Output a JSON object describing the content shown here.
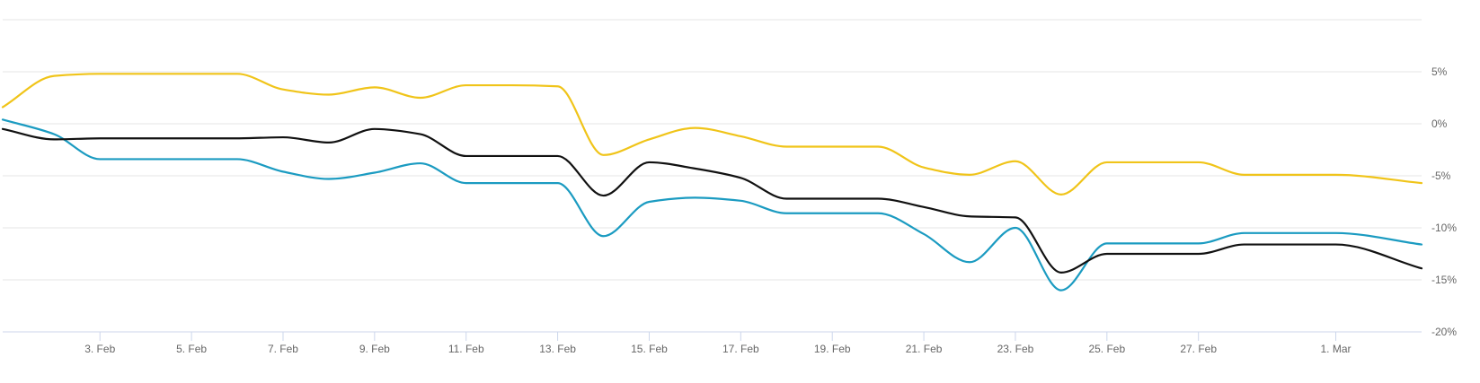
{
  "chart_data": {
    "type": "line",
    "title": "",
    "xlabel": "",
    "ylabel": "",
    "x_ticks": [
      {
        "date": "2024-02-03",
        "label": "3. Feb"
      },
      {
        "date": "2024-02-05",
        "label": "5. Feb"
      },
      {
        "date": "2024-02-07",
        "label": "7. Feb"
      },
      {
        "date": "2024-02-09",
        "label": "9. Feb"
      },
      {
        "date": "2024-02-11",
        "label": "11. Feb"
      },
      {
        "date": "2024-02-13",
        "label": "13. Feb"
      },
      {
        "date": "2024-02-15",
        "label": "15. Feb"
      },
      {
        "date": "2024-02-17",
        "label": "17. Feb"
      },
      {
        "date": "2024-02-19",
        "label": "19. Feb"
      },
      {
        "date": "2024-02-21",
        "label": "21. Feb"
      },
      {
        "date": "2024-02-23",
        "label": "23. Feb"
      },
      {
        "date": "2024-02-25",
        "label": "25. Feb"
      },
      {
        "date": "2024-02-27",
        "label": "27. Feb"
      },
      {
        "date": "2024-03-01",
        "label": "1. Mar"
      }
    ],
    "y_ticks": [
      {
        "value": 5,
        "label": "5%"
      },
      {
        "value": 0,
        "label": "0%"
      },
      {
        "value": -5,
        "label": "-5%"
      },
      {
        "value": -10,
        "label": "-10%"
      },
      {
        "value": -15,
        "label": "-15%"
      },
      {
        "value": -20,
        "label": "-20%"
      }
    ],
    "xlim": [
      "2024-01-31 21:00",
      "2024-03-02 21:00"
    ],
    "ylim": [
      -20,
      10
    ],
    "grid": true,
    "series": [
      {
        "color": "#f0c419",
        "points": [
          [
            "2024-01-31 21:00",
            1.6
          ],
          [
            "2024-02-02",
            4.6
          ],
          [
            "2024-02-03",
            4.8
          ],
          [
            "2024-02-04",
            4.8
          ],
          [
            "2024-02-05",
            4.8
          ],
          [
            "2024-02-06",
            4.8
          ],
          [
            "2024-02-07",
            3.3
          ],
          [
            "2024-02-08",
            2.8
          ],
          [
            "2024-02-09",
            3.5
          ],
          [
            "2024-02-10",
            2.5
          ],
          [
            "2024-02-11",
            3.7
          ],
          [
            "2024-02-12",
            3.7
          ],
          [
            "2024-02-13",
            3.6
          ],
          [
            "2024-02-14",
            -3.0
          ],
          [
            "2024-02-15",
            -1.5
          ],
          [
            "2024-02-16",
            -0.4
          ],
          [
            "2024-02-17",
            -1.2
          ],
          [
            "2024-02-18",
            -2.2
          ],
          [
            "2024-02-19",
            -2.2
          ],
          [
            "2024-02-20",
            -2.2
          ],
          [
            "2024-02-21",
            -4.2
          ],
          [
            "2024-02-22",
            -4.9
          ],
          [
            "2024-02-23",
            -3.6
          ],
          [
            "2024-02-24",
            -6.8
          ],
          [
            "2024-02-25",
            -3.7
          ],
          [
            "2024-02-26",
            -3.7
          ],
          [
            "2024-02-27",
            -3.7
          ],
          [
            "2024-02-28",
            -4.9
          ],
          [
            "2024-02-29",
            -4.9
          ],
          [
            "2024-03-01",
            -4.9
          ],
          [
            "2024-03-02 21:00",
            -5.7
          ]
        ]
      },
      {
        "color": "#1b9bc1",
        "points": [
          [
            "2024-01-31 21:00",
            0.4
          ],
          [
            "2024-02-02",
            -1.0
          ],
          [
            "2024-02-03",
            -3.4
          ],
          [
            "2024-02-04",
            -3.4
          ],
          [
            "2024-02-05",
            -3.4
          ],
          [
            "2024-02-06",
            -3.4
          ],
          [
            "2024-02-07",
            -4.6
          ],
          [
            "2024-02-08",
            -5.3
          ],
          [
            "2024-02-09",
            -4.7
          ],
          [
            "2024-02-10",
            -3.8
          ],
          [
            "2024-02-11",
            -5.7
          ],
          [
            "2024-02-12",
            -5.7
          ],
          [
            "2024-02-13",
            -5.7
          ],
          [
            "2024-02-14",
            -10.8
          ],
          [
            "2024-02-15",
            -7.5
          ],
          [
            "2024-02-16",
            -7.1
          ],
          [
            "2024-02-17",
            -7.4
          ],
          [
            "2024-02-18",
            -8.6
          ],
          [
            "2024-02-19",
            -8.6
          ],
          [
            "2024-02-20",
            -8.6
          ],
          [
            "2024-02-21",
            -10.6
          ],
          [
            "2024-02-22",
            -13.3
          ],
          [
            "2024-02-23",
            -10.0
          ],
          [
            "2024-02-24",
            -16.0
          ],
          [
            "2024-02-25",
            -11.5
          ],
          [
            "2024-02-26",
            -11.5
          ],
          [
            "2024-02-27",
            -11.5
          ],
          [
            "2024-02-28",
            -10.5
          ],
          [
            "2024-02-29",
            -10.5
          ],
          [
            "2024-03-01",
            -10.5
          ],
          [
            "2024-03-02 21:00",
            -11.6
          ]
        ]
      },
      {
        "color": "#111111",
        "points": [
          [
            "2024-01-31 21:00",
            -0.5
          ],
          [
            "2024-02-02",
            -1.5
          ],
          [
            "2024-02-03",
            -1.4
          ],
          [
            "2024-02-04",
            -1.4
          ],
          [
            "2024-02-05",
            -1.4
          ],
          [
            "2024-02-06",
            -1.4
          ],
          [
            "2024-02-07",
            -1.3
          ],
          [
            "2024-02-08",
            -1.8
          ],
          [
            "2024-02-09",
            -0.5
          ],
          [
            "2024-02-10",
            -1.0
          ],
          [
            "2024-02-11",
            -3.1
          ],
          [
            "2024-02-12",
            -3.1
          ],
          [
            "2024-02-13",
            -3.1
          ],
          [
            "2024-02-14",
            -6.9
          ],
          [
            "2024-02-15",
            -3.7
          ],
          [
            "2024-02-16",
            -4.3
          ],
          [
            "2024-02-17",
            -5.2
          ],
          [
            "2024-02-18",
            -7.2
          ],
          [
            "2024-02-19",
            -7.2
          ],
          [
            "2024-02-20",
            -7.2
          ],
          [
            "2024-02-21",
            -8.0
          ],
          [
            "2024-02-22",
            -8.9
          ],
          [
            "2024-02-23",
            -9.0
          ],
          [
            "2024-02-24",
            -14.3
          ],
          [
            "2024-02-25",
            -12.5
          ],
          [
            "2024-02-26",
            -12.5
          ],
          [
            "2024-02-27",
            -12.5
          ],
          [
            "2024-02-28",
            -11.6
          ],
          [
            "2024-02-29",
            -11.6
          ],
          [
            "2024-03-01",
            -11.6
          ],
          [
            "2024-03-02 21:00",
            -13.9
          ]
        ]
      }
    ]
  }
}
